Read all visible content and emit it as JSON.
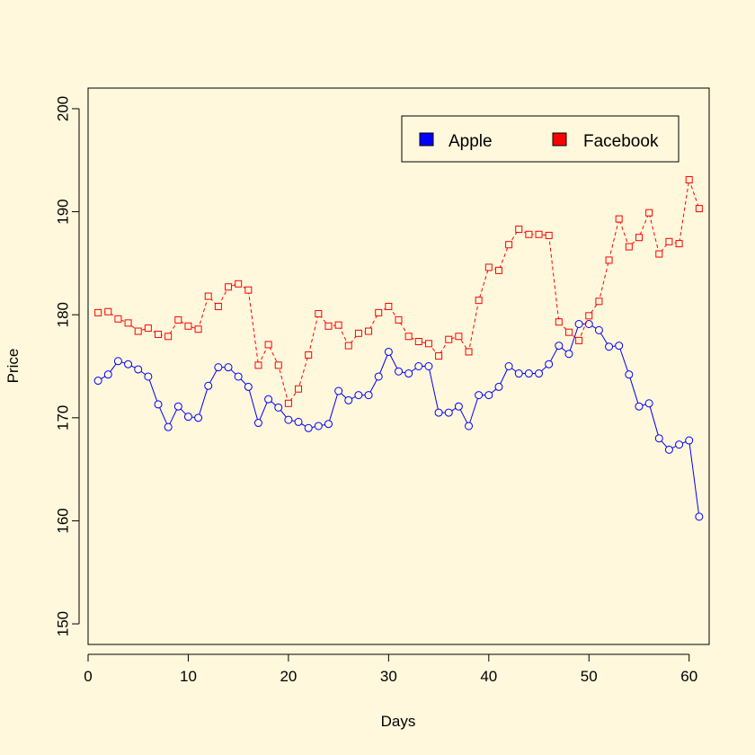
{
  "chart_data": {
    "type": "line",
    "title": "",
    "xlabel": "Days",
    "ylabel": "Price",
    "xlim": [
      0,
      62
    ],
    "ylim": [
      148,
      202
    ],
    "xticks": [
      0,
      10,
      20,
      30,
      40,
      50,
      60
    ],
    "xtick_labels": [
      "0",
      "10",
      "20",
      "30",
      "40",
      "50",
      "60"
    ],
    "yticks": [
      150,
      160,
      170,
      180,
      190,
      200
    ],
    "ytick_labels": [
      "150",
      "160",
      "170",
      "180",
      "190",
      "200"
    ],
    "grid": false,
    "legend_position": "top-right",
    "x": [
      1,
      2,
      3,
      4,
      5,
      6,
      7,
      8,
      9,
      10,
      11,
      12,
      13,
      14,
      15,
      16,
      17,
      18,
      19,
      20,
      21,
      22,
      23,
      24,
      25,
      26,
      27,
      28,
      29,
      30,
      31,
      32,
      33,
      34,
      35,
      36,
      37,
      38,
      39,
      40,
      41,
      42,
      43,
      44,
      45,
      46,
      47,
      48,
      49,
      50,
      51,
      52,
      53,
      54,
      55,
      56,
      57,
      58,
      59,
      60,
      61
    ],
    "series": [
      {
        "name": "Apple",
        "color": "#0000ff",
        "marker": "circle",
        "line_style": "solid",
        "values": [
          173.6,
          174.2,
          175.5,
          175.2,
          174.7,
          174.0,
          171.3,
          169.1,
          171.1,
          170.1,
          170.0,
          173.1,
          174.9,
          174.9,
          174.0,
          173.0,
          169.5,
          171.8,
          171.0,
          169.8,
          169.6,
          169.0,
          169.2,
          169.4,
          172.6,
          171.7,
          172.2,
          172.2,
          174.0,
          176.4,
          174.5,
          174.3,
          175.0,
          175.0,
          170.5,
          170.5,
          171.1,
          169.2,
          172.2,
          172.2,
          173.0,
          175.0,
          174.3,
          174.3,
          174.3,
          175.2,
          177.0,
          176.2,
          179.1,
          179.1,
          178.5,
          176.9,
          177.0,
          174.2,
          171.1,
          171.4,
          168.0,
          166.9,
          167.4,
          167.8,
          160.4
        ]
      },
      {
        "name": "Facebook",
        "color": "#ff0000",
        "marker": "square",
        "line_style": "dashed",
        "values": [
          180.2,
          180.3,
          179.6,
          179.2,
          178.4,
          178.7,
          178.1,
          177.9,
          179.5,
          178.9,
          178.6,
          181.8,
          180.8,
          182.7,
          183.0,
          182.4,
          175.1,
          177.1,
          175.1,
          171.4,
          172.8,
          176.1,
          180.1,
          178.9,
          179.0,
          177.0,
          178.2,
          178.4,
          180.2,
          180.8,
          179.5,
          177.9,
          177.4,
          177.2,
          176.0,
          177.6,
          177.9,
          176.4,
          181.4,
          184.6,
          184.3,
          186.8,
          188.3,
          187.8,
          187.8,
          187.7,
          179.3,
          178.3,
          177.5,
          179.9,
          181.3,
          185.3,
          189.3,
          186.6,
          187.5,
          189.9,
          185.9,
          187.1,
          186.9,
          193.1,
          190.3
        ]
      }
    ]
  }
}
